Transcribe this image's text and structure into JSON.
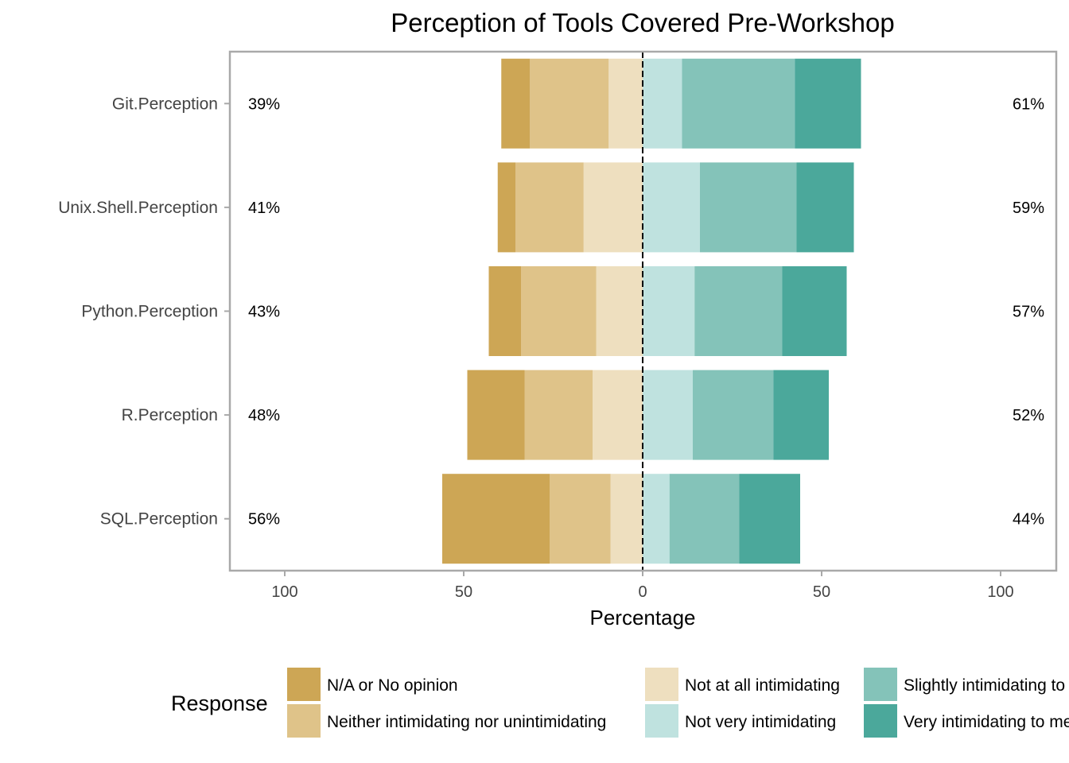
{
  "chart_data": {
    "type": "bar",
    "orientation": "horizontal-diverging",
    "title": "Perception of Tools Covered Pre-Workshop",
    "xlabel": "Percentage",
    "ylabel": "",
    "xlim": [
      -115,
      115
    ],
    "x_ticks": [
      -100,
      -50,
      0,
      50,
      100
    ],
    "x_tick_labels": [
      "100",
      "50",
      "0",
      "50",
      "100"
    ],
    "grid": true,
    "legend_title": "Response",
    "legend_position": "bottom",
    "categories": [
      "Git.Perception",
      "Unix.Shell.Perception",
      "Python.Perception",
      "R.Perception",
      "SQL.Perception"
    ],
    "series": [
      {
        "name": "N/A or No opinion",
        "side": "negative",
        "color": "#CDA655",
        "values": [
          8,
          5,
          9,
          16,
          30
        ]
      },
      {
        "name": "Neither intimidating nor unintimidating",
        "side": "negative",
        "color": "#DFC389",
        "values": [
          22,
          19,
          21,
          19,
          17
        ]
      },
      {
        "name": "Not at all intimidating",
        "side": "negative",
        "color": "#EEDFBF",
        "values": [
          9.5,
          16.5,
          13,
          14,
          9
        ]
      },
      {
        "name": "Not very intimidating",
        "side": "positive",
        "color": "#BFE2DF",
        "values": [
          11,
          16,
          14.5,
          14,
          7.5
        ]
      },
      {
        "name": "Slightly intimidating to me",
        "side": "positive",
        "color": "#84C3B9",
        "values": [
          31.5,
          27,
          24.5,
          22.5,
          19.5
        ]
      },
      {
        "name": "Very intimidating to me",
        "side": "positive",
        "color": "#4BA89B",
        "values": [
          18.5,
          16,
          18,
          15.5,
          17
        ]
      }
    ],
    "left_totals": [
      "39%",
      "41%",
      "43%",
      "48%",
      "56%"
    ],
    "right_totals": [
      "61%",
      "59%",
      "57%",
      "52%",
      "44%"
    ]
  }
}
